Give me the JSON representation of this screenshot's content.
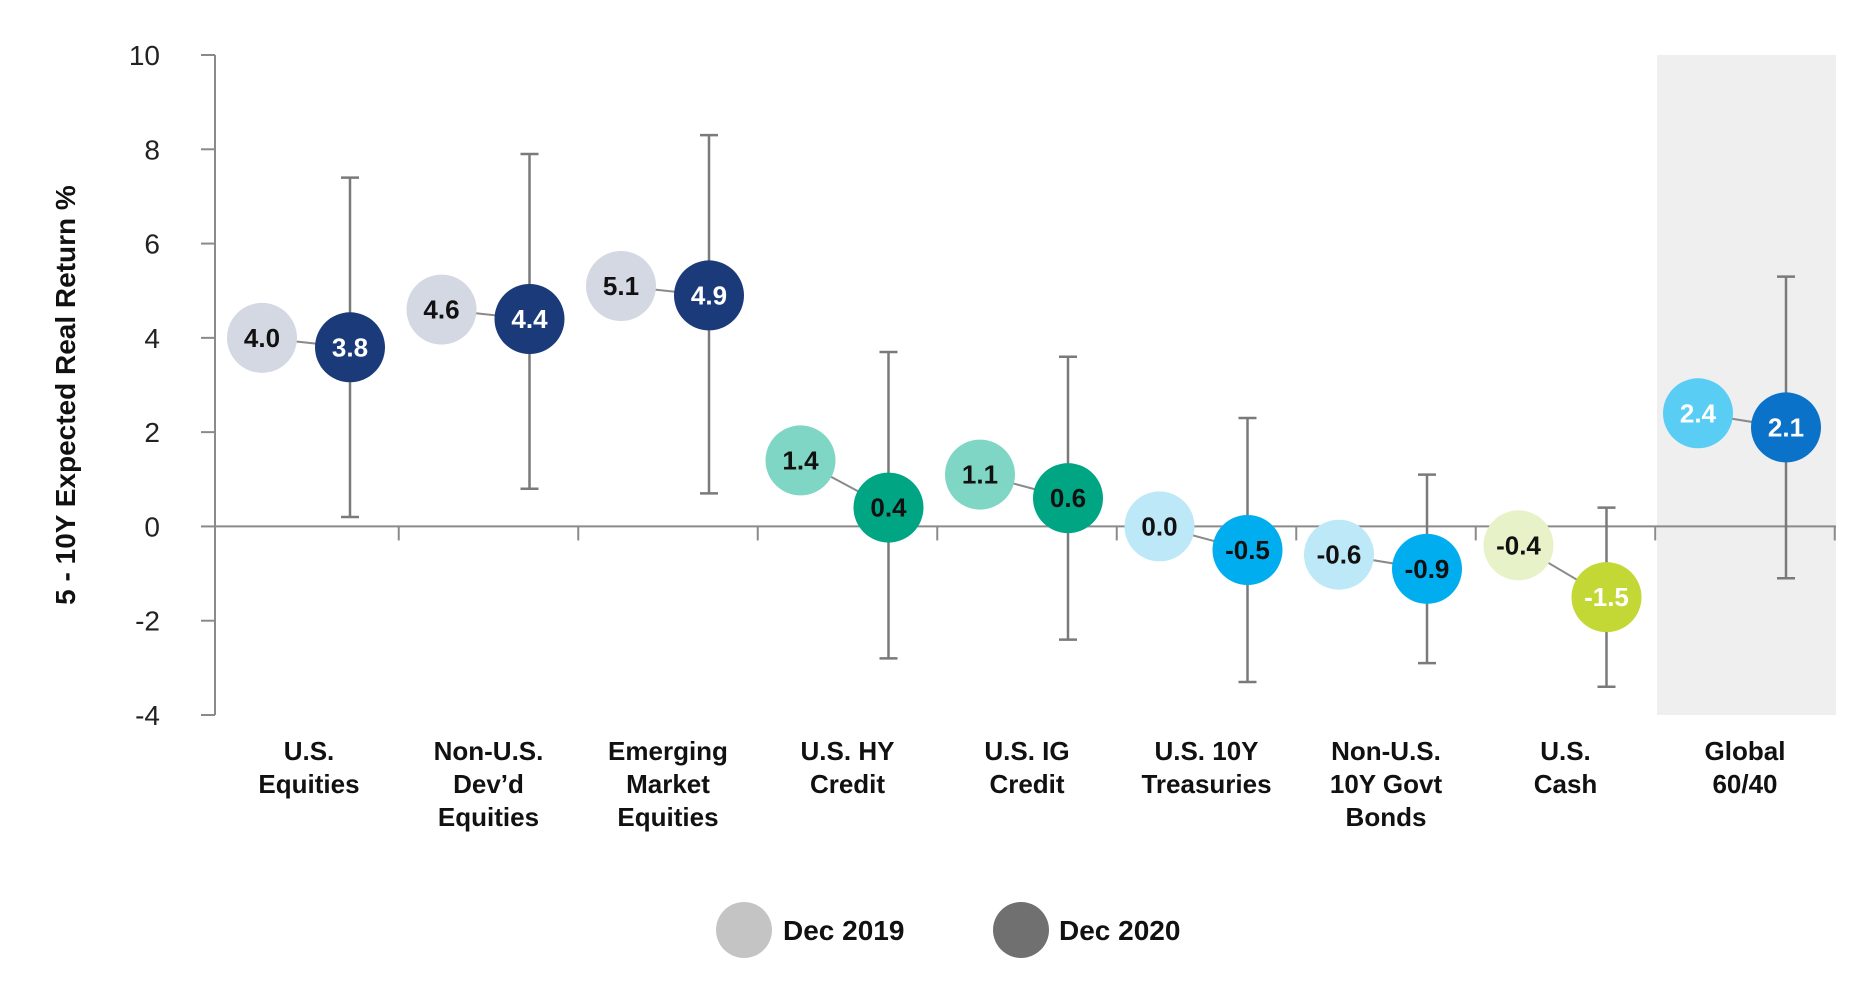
{
  "chart_data": {
    "type": "scatter",
    "title": "",
    "ylabel": "5 - 10Y Expected Real Return %",
    "xlabel": "",
    "ylim": [
      -4,
      10
    ],
    "yticks": [
      10,
      8,
      6,
      4,
      2,
      0,
      -2,
      -4
    ],
    "categories": [
      {
        "label": [
          "U.S.",
          "Equities"
        ],
        "dec2019": 4.0,
        "dec2020": 3.8,
        "range": [
          0.2,
          7.4
        ],
        "color2019": "#d3d8e3",
        "color2020": "#1b3a7a",
        "text2019": "#111111",
        "text2020": "#ffffff",
        "t2019": "4.0",
        "t2020": "3.8"
      },
      {
        "label": [
          "Non-U.S.",
          "Dev’d",
          "Equities"
        ],
        "dec2019": 4.6,
        "dec2020": 4.4,
        "range": [
          0.8,
          7.9
        ],
        "color2019": "#d3d8e3",
        "color2020": "#1b3a7a",
        "text2019": "#111111",
        "text2020": "#ffffff",
        "t2019": "4.6",
        "t2020": "4.4"
      },
      {
        "label": [
          "Emerging",
          "Market",
          "Equities"
        ],
        "dec2019": 5.1,
        "dec2020": 4.9,
        "range": [
          0.7,
          8.3
        ],
        "color2019": "#d3d8e3",
        "color2020": "#1b3a7a",
        "text2019": "#111111",
        "text2020": "#ffffff",
        "t2019": "5.1",
        "t2020": "4.9"
      },
      {
        "label": [
          "U.S. HY",
          "Credit"
        ],
        "dec2019": 1.4,
        "dec2020": 0.4,
        "range": [
          -2.8,
          3.7
        ],
        "color2019": "#7fd6c4",
        "color2020": "#00a684",
        "text2019": "#111111",
        "text2020": "#111111",
        "t2019": "1.4",
        "t2020": "0.4"
      },
      {
        "label": [
          "U.S. IG",
          "Credit"
        ],
        "dec2019": 1.1,
        "dec2020": 0.6,
        "range": [
          -2.4,
          3.6
        ],
        "color2019": "#7fd6c4",
        "color2020": "#00a684",
        "text2019": "#111111",
        "text2020": "#111111",
        "t2019": "1.1",
        "t2020": "0.6"
      },
      {
        "label": [
          "U.S. 10Y",
          "Treasuries"
        ],
        "dec2019": 0.0,
        "dec2020": -0.5,
        "range": [
          -3.3,
          2.3
        ],
        "color2019": "#bde8f7",
        "color2020": "#00aeef",
        "text2019": "#111111",
        "text2020": "#111111",
        "t2019": "0.0",
        "t2020": "-0.5"
      },
      {
        "label": [
          "Non-U.S.",
          "10Y Govt",
          "Bonds"
        ],
        "dec2019": -0.6,
        "dec2020": -0.9,
        "range": [
          -2.9,
          1.1
        ],
        "color2019": "#bde8f7",
        "color2020": "#00aeef",
        "text2019": "#111111",
        "text2020": "#111111",
        "t2019": "-0.6",
        "t2020": "-0.9"
      },
      {
        "label": [
          "U.S.",
          "Cash"
        ],
        "dec2019": -0.4,
        "dec2020": -1.5,
        "range": [
          -3.4,
          0.4
        ],
        "color2019": "#e8f2c8",
        "color2020": "#c3d834",
        "text2019": "#111111",
        "text2020": "#ffffff",
        "t2019": "-0.4",
        "t2020": "-1.5"
      },
      {
        "label": [
          "Global",
          "60/40"
        ],
        "dec2019": 2.4,
        "dec2020": 2.1,
        "range": [
          -1.1,
          5.3
        ],
        "color2019": "#5acdf5",
        "color2020": "#0a72c8",
        "text2019": "#ffffff",
        "text2020": "#ffffff",
        "t2019": "2.4",
        "t2020": "2.1",
        "highlight": true
      }
    ],
    "legend": [
      {
        "label": "Dec 2019",
        "color": "#c4c4c4"
      },
      {
        "label": "Dec 2020",
        "color": "#707070"
      }
    ],
    "colors": {
      "axis": "#8a8a8a",
      "errorbar": "#7a7a7a",
      "connector": "#8a8a8a",
      "highlight_bg": "#efefef"
    }
  }
}
